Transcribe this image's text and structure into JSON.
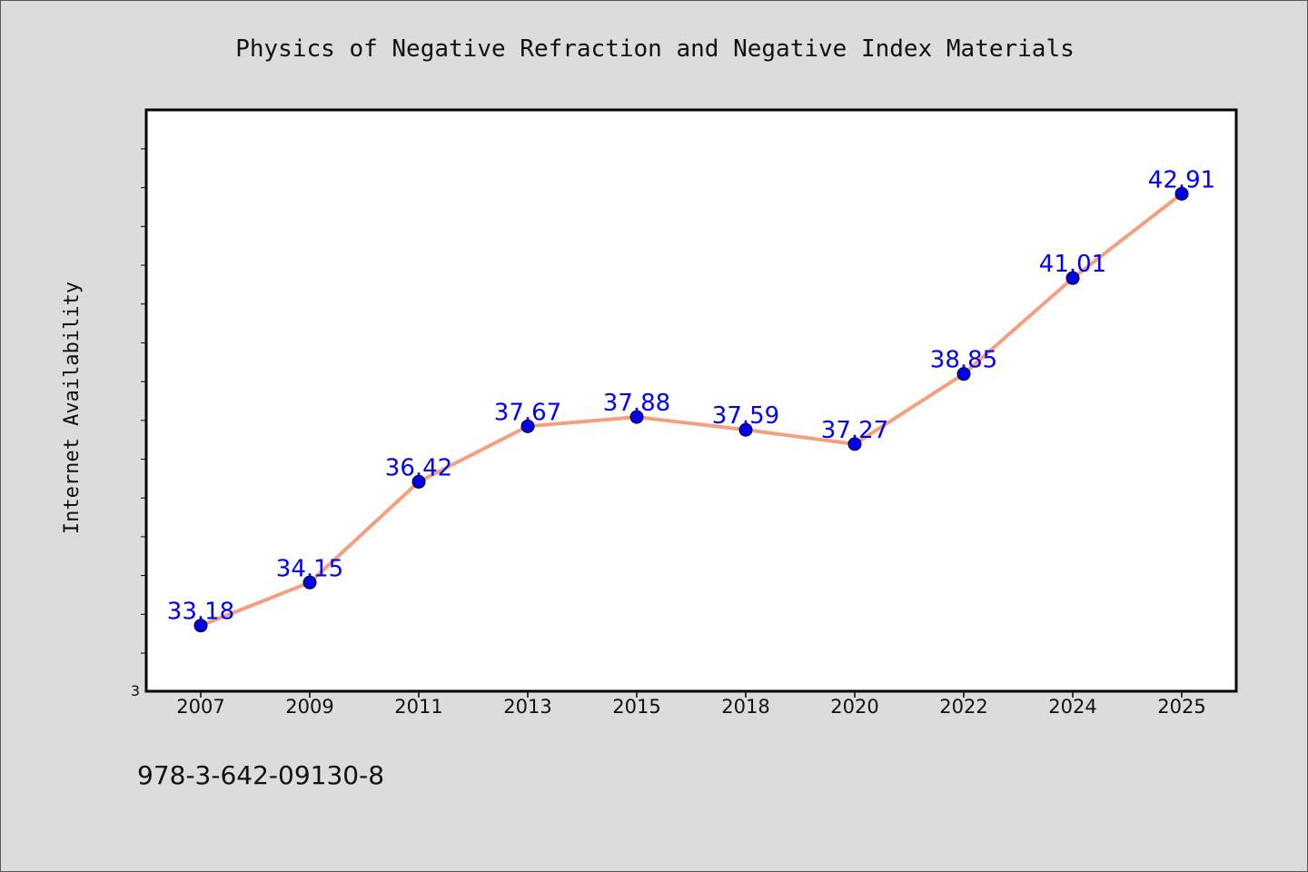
{
  "chart_data": {
    "type": "line",
    "title": "Physics of Negative Refraction and Negative Index Materials",
    "xlabel": "",
    "ylabel": "Internet Availability",
    "categories": [
      "2007",
      "2009",
      "2011",
      "2013",
      "2015",
      "2018",
      "2020",
      "2022",
      "2024",
      "2025"
    ],
    "series": [
      {
        "values": [
          33.18,
          34.15,
          36.42,
          37.67,
          37.88,
          37.59,
          37.27,
          38.85,
          41.01,
          42.91
        ]
      }
    ],
    "data_labels": [
      "33.18",
      "34.15",
      "36.42",
      "37.67",
      "37.88",
      "37.59",
      "37.27",
      "38.85",
      "41.01",
      "42.91"
    ],
    "y_tick_labels": [
      "3"
    ],
    "ylim": [
      31.7,
      44.8
    ],
    "grid": false,
    "legend": "none",
    "line_color": "#f4a07e",
    "marker_color": "#0000ee",
    "label_color": "#0000ee",
    "plot_background": "#ffffff",
    "page_background": "#dcdcdc"
  },
  "footer": {
    "isbn": "978-3-642-09130-8"
  }
}
